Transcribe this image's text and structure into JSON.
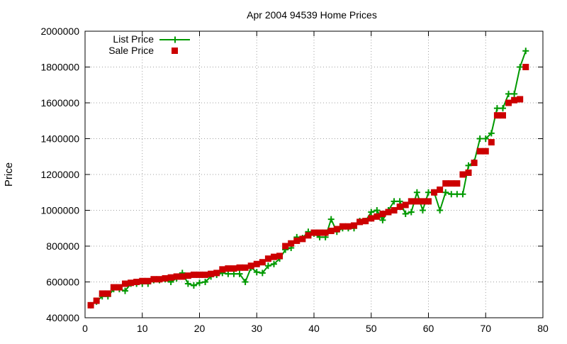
{
  "chart_data": {
    "type": "line",
    "title": "Apr 2004 94539 Home Prices",
    "xlabel": "",
    "ylabel": "Price",
    "xlim": [
      0,
      80
    ],
    "ylim": [
      400000,
      2000000
    ],
    "x_ticks": [
      0,
      10,
      20,
      30,
      40,
      50,
      60,
      70,
      80
    ],
    "y_ticks": [
      400000,
      600000,
      800000,
      1000000,
      1200000,
      1400000,
      1600000,
      1800000,
      2000000
    ],
    "grid": true,
    "legend_position": "top-left",
    "series": [
      {
        "name": "List Price",
        "style": "line+cross",
        "color": "#009900",
        "x": [
          1,
          2,
          3,
          4,
          5,
          6,
          7,
          8,
          9,
          10,
          11,
          12,
          13,
          14,
          15,
          16,
          17,
          18,
          19,
          20,
          21,
          22,
          23,
          24,
          25,
          26,
          27,
          28,
          29,
          30,
          31,
          32,
          33,
          34,
          35,
          36,
          37,
          38,
          39,
          40,
          41,
          42,
          43,
          44,
          45,
          46,
          47,
          48,
          49,
          50,
          51,
          52,
          53,
          54,
          55,
          56,
          57,
          58,
          59,
          60,
          61,
          62,
          63,
          64,
          65,
          66,
          67,
          68,
          69,
          70,
          71,
          72,
          73,
          74,
          75,
          76,
          77
        ],
        "y": [
          470000,
          490000,
          520000,
          520000,
          560000,
          560000,
          550000,
          590000,
          590000,
          590000,
          590000,
          610000,
          610000,
          615000,
          600000,
          620000,
          650000,
          590000,
          580000,
          595000,
          600000,
          630000,
          640000,
          650000,
          645000,
          645000,
          645000,
          600000,
          680000,
          655000,
          650000,
          690000,
          700000,
          730000,
          780000,
          790000,
          850000,
          845000,
          880000,
          870000,
          850000,
          850000,
          950000,
          880000,
          900000,
          900000,
          900000,
          940000,
          940000,
          990000,
          1000000,
          945000,
          1000000,
          1050000,
          1050000,
          980000,
          990000,
          1100000,
          1000000,
          1100000,
          1100000,
          1000000,
          1100000,
          1090000,
          1090000,
          1090000,
          1250000,
          1270000,
          1400000,
          1400000,
          1430000,
          1570000,
          1570000,
          1650000,
          1650000,
          1800000,
          1890000
        ]
      },
      {
        "name": "Sale Price",
        "style": "points",
        "color": "#cc0000",
        "x": [
          1,
          2,
          3,
          4,
          5,
          6,
          7,
          8,
          9,
          10,
          11,
          12,
          13,
          14,
          15,
          16,
          17,
          18,
          19,
          20,
          21,
          22,
          23,
          24,
          25,
          26,
          27,
          28,
          29,
          30,
          31,
          32,
          33,
          34,
          35,
          36,
          37,
          38,
          39,
          40,
          41,
          42,
          43,
          44,
          45,
          46,
          47,
          48,
          49,
          50,
          51,
          52,
          53,
          54,
          55,
          56,
          57,
          58,
          59,
          60,
          61,
          62,
          63,
          64,
          65,
          66,
          67,
          68,
          69,
          70,
          71,
          72,
          73,
          74,
          75,
          76,
          77
        ],
        "y": [
          470000,
          495000,
          535000,
          535000,
          570000,
          570000,
          590000,
          595000,
          600000,
          605000,
          605000,
          615000,
          615000,
          620000,
          625000,
          630000,
          630000,
          635000,
          640000,
          640000,
          640000,
          645000,
          650000,
          670000,
          675000,
          675000,
          680000,
          680000,
          690000,
          700000,
          710000,
          730000,
          740000,
          745000,
          800000,
          815000,
          830000,
          840000,
          860000,
          875000,
          875000,
          875000,
          885000,
          895000,
          910000,
          910000,
          915000,
          935000,
          940000,
          955000,
          965000,
          980000,
          990000,
          1000000,
          1020000,
          1030000,
          1050000,
          1050000,
          1050000,
          1050000,
          1100000,
          1115000,
          1150000,
          1150000,
          1150000,
          1200000,
          1210000,
          1265000,
          1330000,
          1330000,
          1380000,
          1530000,
          1530000,
          1600000,
          1615000,
          1620000,
          1800000
        ]
      }
    ]
  }
}
